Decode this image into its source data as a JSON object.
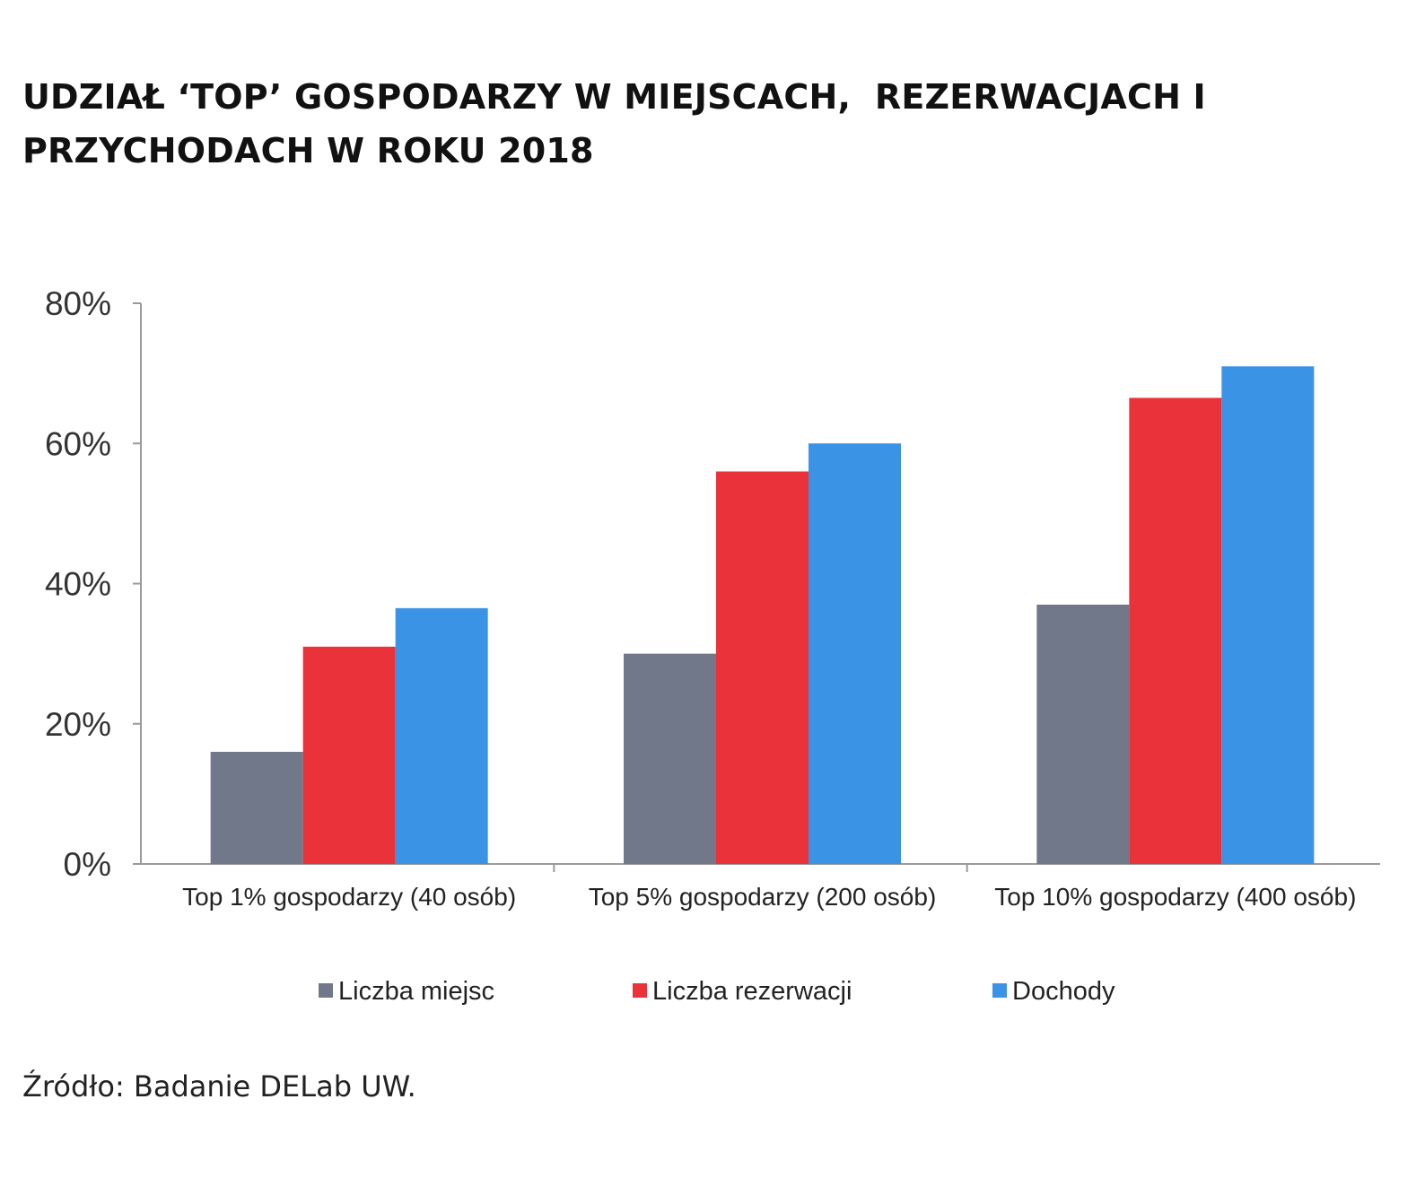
{
  "title_lines": [
    "UDZIAŁ ‘TOP’ GOSPODARZY W MIEJSCACH,  REZERWACJACH I",
    "PRZYCHODACH W ROKU 2018"
  ],
  "source": "Źródło: Badanie DELab UW.",
  "chart_data": {
    "type": "bar",
    "title": "UDZIAŁ ‘TOP’ GOSPODARZY W MIEJSCACH,  REZERWACJACH I PRZYCHODACH W ROKU 2018",
    "categories": [
      "Top 1% gospodarzy (40 osób)",
      "Top 5% gospodarzy (200 osób)",
      "Top 10% gospodarzy (400 osób)"
    ],
    "series": [
      {
        "name": "Liczba miejsc",
        "color": "#707889",
        "values": [
          16,
          30,
          37
        ]
      },
      {
        "name": "Liczba rezerwacji",
        "color": "#e9323a",
        "values": [
          31,
          56,
          66.5
        ]
      },
      {
        "name": "Dochody",
        "color": "#3b93e6",
        "values": [
          36.5,
          60,
          71
        ]
      }
    ],
    "yticks": [
      "0%",
      "20%",
      "40%",
      "60%",
      "80%"
    ],
    "ylim": [
      0,
      80
    ],
    "xlabel": "",
    "ylabel": "",
    "grid": false,
    "legend": "bottom"
  }
}
